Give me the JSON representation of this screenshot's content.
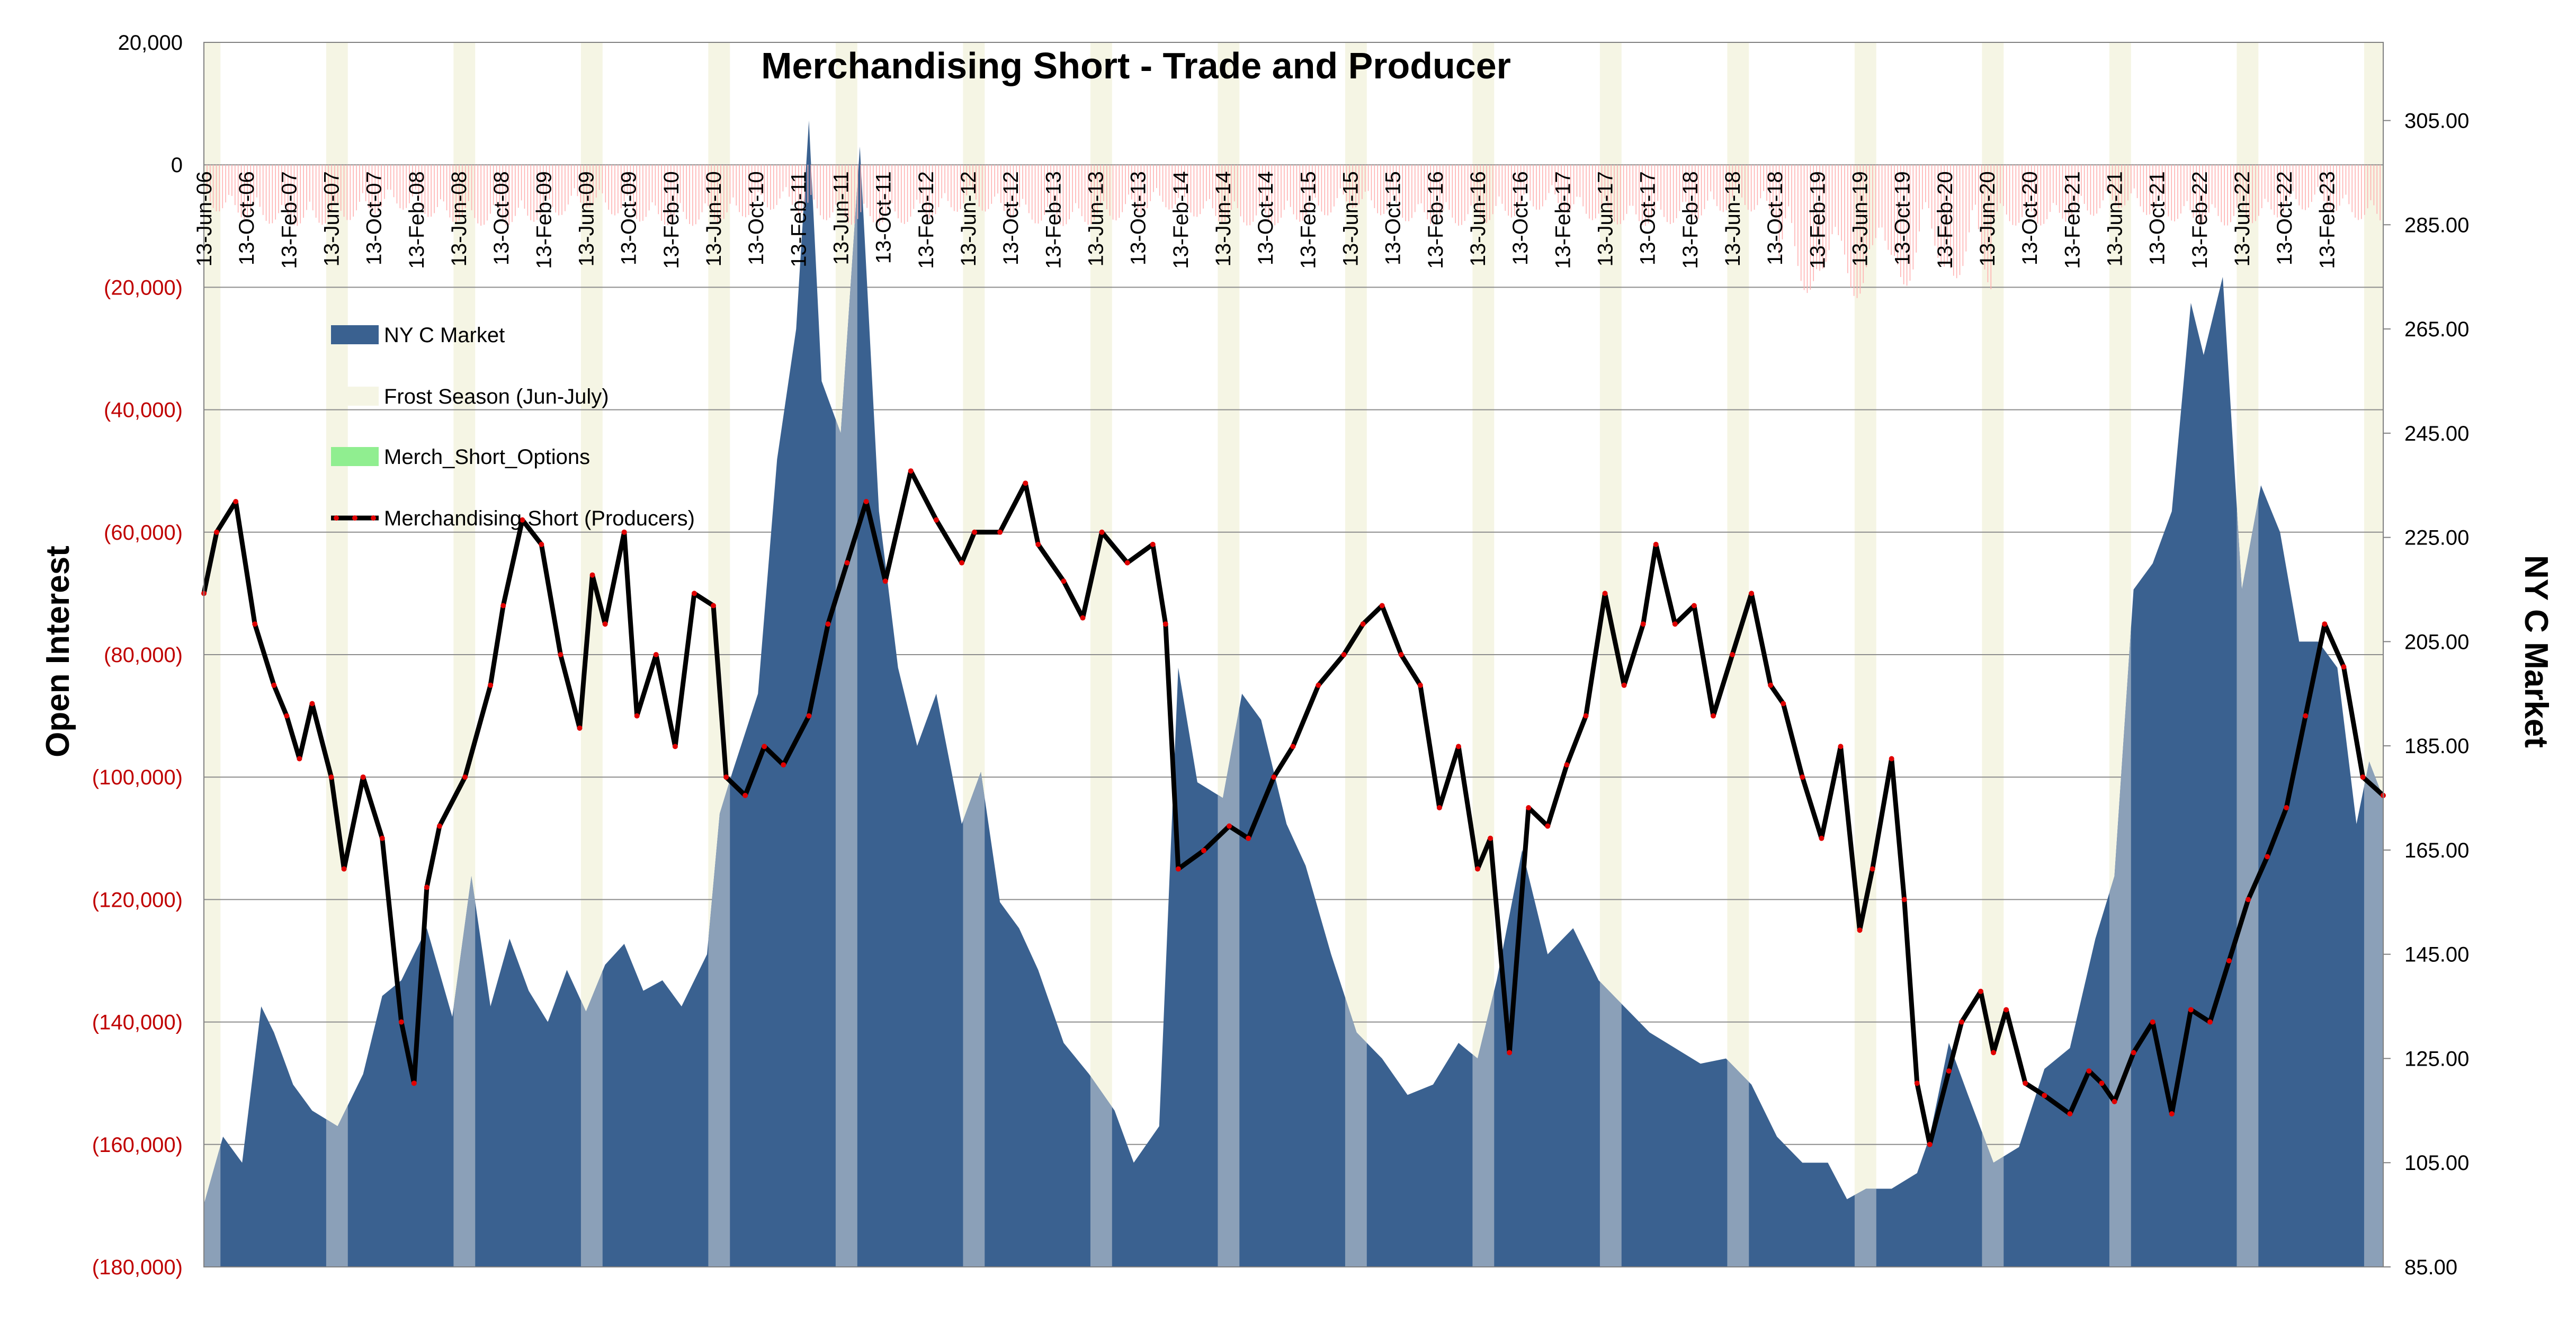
{
  "chart_data": {
    "type": "area",
    "title": "Merchandising Short - Trade and Producer",
    "ylabel_left": "Open Interest",
    "ylabel_right": "NY C Market",
    "ylim_left": [
      -180000,
      20000
    ],
    "ylim_right": [
      85,
      320
    ],
    "left_ticks": [
      "20,000",
      "0",
      "(20,000)",
      "(40,000)",
      "(60,000)",
      "(80,000)",
      "(100,000)",
      "(120,000)",
      "(140,000)",
      "(160,000)",
      "(180,000)"
    ],
    "left_tick_values": [
      20000,
      0,
      -20000,
      -40000,
      -60000,
      -80000,
      -100000,
      -120000,
      -140000,
      -160000,
      -180000
    ],
    "right_ticks": [
      "305.00",
      "285.00",
      "265.00",
      "245.00",
      "225.00",
      "205.00",
      "185.00",
      "165.00",
      "145.00",
      "125.00",
      "105.00",
      "85.00"
    ],
    "right_tick_values": [
      305,
      285,
      265,
      245,
      225,
      205,
      185,
      165,
      145,
      125,
      105,
      85
    ],
    "x_tick_labels": [
      "13-Jun-06",
      "13-Oct-06",
      "13-Feb-07",
      "13-Jun-07",
      "13-Oct-07",
      "13-Feb-08",
      "13-Jun-08",
      "13-Oct-08",
      "13-Feb-09",
      "13-Jun-09",
      "13-Oct-09",
      "13-Feb-10",
      "13-Jun-10",
      "13-Oct-10",
      "13-Feb-11",
      "13-Jun-11",
      "13-Oct-11",
      "13-Feb-12",
      "13-Jun-12",
      "13-Oct-12",
      "13-Feb-13",
      "13-Jun-13",
      "13-Oct-13",
      "13-Feb-14",
      "13-Jun-14",
      "13-Oct-14",
      "13-Feb-15",
      "13-Jun-15",
      "13-Oct-15",
      "13-Feb-16",
      "13-Jun-16",
      "13-Oct-16",
      "13-Feb-17",
      "13-Jun-17",
      "13-Oct-17",
      "13-Feb-18",
      "13-Jun-18",
      "13-Oct-18",
      "13-Feb-19",
      "13-Jun-19",
      "13-Oct-19",
      "13-Feb-20",
      "13-Jun-20",
      "13-Oct-20",
      "13-Feb-21",
      "13-Jun-21",
      "13-Oct-21",
      "13-Feb-22",
      "13-Jun-22",
      "13-Oct-22",
      "13-Feb-23"
    ],
    "x_start_year": 2006.45,
    "x_end_year": 2023.56,
    "grid": true,
    "legend_position": "top-left",
    "legend": [
      {
        "label": "NY C Market",
        "color": "#3a6190",
        "kind": "area"
      },
      {
        "label": "Frost Season (Jun-July)",
        "color": "#f5f5e4",
        "kind": "band"
      },
      {
        "label": "Merch_Short_Options",
        "color": "#90ee90",
        "kind": "bar"
      },
      {
        "label": "Merchandising Short (Producers)",
        "color": "#000000",
        "kind": "line"
      }
    ],
    "colors": {
      "market_area": "#3a6190",
      "market_area_frost": "#8ba0b8",
      "frost_band": "#f5f5e4",
      "producer_line": "#000000",
      "producer_markers": "#e00000",
      "options_bars": "#ffb0b0",
      "left_tick_negative": "#c00000"
    },
    "series": [
      {
        "name": "NY C Market",
        "axis": "right",
        "x": [
          2006.45,
          2006.6,
          2006.75,
          2006.9,
          2007.0,
          2007.15,
          2007.3,
          2007.5,
          2007.7,
          2007.85,
          2008.0,
          2008.2,
          2008.4,
          2008.55,
          2008.7,
          2008.85,
          2009.0,
          2009.15,
          2009.3,
          2009.45,
          2009.6,
          2009.75,
          2009.9,
          2010.05,
          2010.2,
          2010.4,
          2010.5,
          2010.6,
          2010.8,
          2010.95,
          2011.1,
          2011.2,
          2011.3,
          2011.45,
          2011.6,
          2011.75,
          2011.9,
          2012.05,
          2012.2,
          2012.4,
          2012.55,
          2012.7,
          2012.85,
          2013.0,
          2013.2,
          2013.4,
          2013.6,
          2013.75,
          2013.95,
          2014.1,
          2014.25,
          2014.45,
          2014.6,
          2014.75,
          2014.95,
          2015.1,
          2015.3,
          2015.5,
          2015.7,
          2015.9,
          2016.1,
          2016.3,
          2016.45,
          2016.6,
          2016.8,
          2017.0,
          2017.2,
          2017.4,
          2017.6,
          2017.8,
          2018.0,
          2018.2,
          2018.4,
          2018.6,
          2018.8,
          2019.0,
          2019.2,
          2019.35,
          2019.5,
          2019.7,
          2019.9,
          2020.0,
          2020.15,
          2020.3,
          2020.5,
          2020.7,
          2020.9,
          2021.1,
          2021.3,
          2021.45,
          2021.6,
          2021.75,
          2021.9,
          2022.05,
          2022.15,
          2022.3,
          2022.45,
          2022.6,
          2022.75,
          2022.9,
          2023.05,
          2023.2,
          2023.35,
          2023.45,
          2023.56
        ],
        "values": [
          97,
          110,
          105,
          135,
          130,
          120,
          115,
          112,
          122,
          137,
          140,
          150,
          133,
          160,
          135,
          148,
          138,
          132,
          142,
          134,
          143,
          147,
          138,
          140,
          135,
          145,
          172,
          180,
          195,
          240,
          265,
          305,
          255,
          245,
          300,
          230,
          200,
          185,
          195,
          170,
          180,
          155,
          150,
          142,
          128,
          122,
          115,
          105,
          112,
          200,
          178,
          175,
          195,
          190,
          170,
          162,
          145,
          130,
          125,
          118,
          120,
          128,
          125,
          140,
          165,
          145,
          150,
          140,
          135,
          130,
          127,
          124,
          125,
          120,
          110,
          105,
          105,
          98,
          100,
          100,
          103,
          110,
          128,
          118,
          105,
          108,
          123,
          127,
          148,
          160,
          215,
          220,
          230,
          270,
          260,
          275,
          215,
          235,
          226,
          205,
          205,
          200,
          170,
          182,
          175
        ]
      },
      {
        "name": "Merchandising Short (Producers)",
        "axis": "left",
        "x": [
          2006.45,
          2006.55,
          2006.7,
          2006.85,
          2007.0,
          2007.1,
          2007.2,
          2007.3,
          2007.45,
          2007.55,
          2007.7,
          2007.85,
          2008.0,
          2008.1,
          2008.2,
          2008.3,
          2008.5,
          2008.7,
          2008.8,
          2008.95,
          2009.1,
          2009.25,
          2009.4,
          2009.5,
          2009.6,
          2009.75,
          2009.85,
          2010.0,
          2010.15,
          2010.3,
          2010.45,
          2010.55,
          2010.7,
          2010.85,
          2011.0,
          2011.2,
          2011.35,
          2011.5,
          2011.65,
          2011.8,
          2012.0,
          2012.2,
          2012.4,
          2012.5,
          2012.7,
          2012.9,
          2013.0,
          2013.2,
          2013.35,
          2013.5,
          2013.7,
          2013.9,
          2014.0,
          2014.1,
          2014.3,
          2014.5,
          2014.65,
          2014.85,
          2015.0,
          2015.2,
          2015.4,
          2015.55,
          2015.7,
          2015.85,
          2016.0,
          2016.15,
          2016.3,
          2016.45,
          2016.55,
          2016.7,
          2016.85,
          2017.0,
          2017.15,
          2017.3,
          2017.45,
          2017.6,
          2017.75,
          2017.85,
          2018.0,
          2018.15,
          2018.3,
          2018.45,
          2018.6,
          2018.75,
          2018.85,
          2019.0,
          2019.15,
          2019.3,
          2019.45,
          2019.55,
          2019.7,
          2019.8,
          2019.9,
          2020.0,
          2020.15,
          2020.25,
          2020.4,
          2020.5,
          2020.6,
          2020.75,
          2020.9,
          2021.1,
          2021.25,
          2021.35,
          2021.45,
          2021.6,
          2021.75,
          2021.9,
          2022.05,
          2022.2,
          2022.35,
          2022.5,
          2022.65,
          2022.8,
          2022.95,
          2023.1,
          2023.25,
          2023.4,
          2023.56
        ],
        "values": [
          -70000,
          -60000,
          -55000,
          -75000,
          -85000,
          -90000,
          -97000,
          -88000,
          -100000,
          -115000,
          -100000,
          -110000,
          -140000,
          -150000,
          -118000,
          -108000,
          -100000,
          -85000,
          -72000,
          -58000,
          -62000,
          -80000,
          -92000,
          -67000,
          -75000,
          -60000,
          -90000,
          -80000,
          -95000,
          -70000,
          -72000,
          -100000,
          -103000,
          -95000,
          -98000,
          -90000,
          -75000,
          -65000,
          -55000,
          -68000,
          -50000,
          -58000,
          -65000,
          -60000,
          -60000,
          -52000,
          -62000,
          -68000,
          -74000,
          -60000,
          -65000,
          -62000,
          -75000,
          -115000,
          -112000,
          -108000,
          -110000,
          -100000,
          -95000,
          -85000,
          -80000,
          -75000,
          -72000,
          -80000,
          -85000,
          -105000,
          -95000,
          -115000,
          -110000,
          -145000,
          -105000,
          -108000,
          -98000,
          -90000,
          -70000,
          -85000,
          -75000,
          -62000,
          -75000,
          -72000,
          -90000,
          -80000,
          -70000,
          -85000,
          -88000,
          -100000,
          -110000,
          -95000,
          -125000,
          -115000,
          -97000,
          -120000,
          -150000,
          -160000,
          -148000,
          -140000,
          -135000,
          -145000,
          -138000,
          -150000,
          -152000,
          -155000,
          -148000,
          -150000,
          -153000,
          -145000,
          -140000,
          -155000,
          -138000,
          -140000,
          -130000,
          -120000,
          -113000,
          -105000,
          -90000,
          -75000,
          -82000,
          -100000,
          -103000
        ]
      }
    ]
  }
}
